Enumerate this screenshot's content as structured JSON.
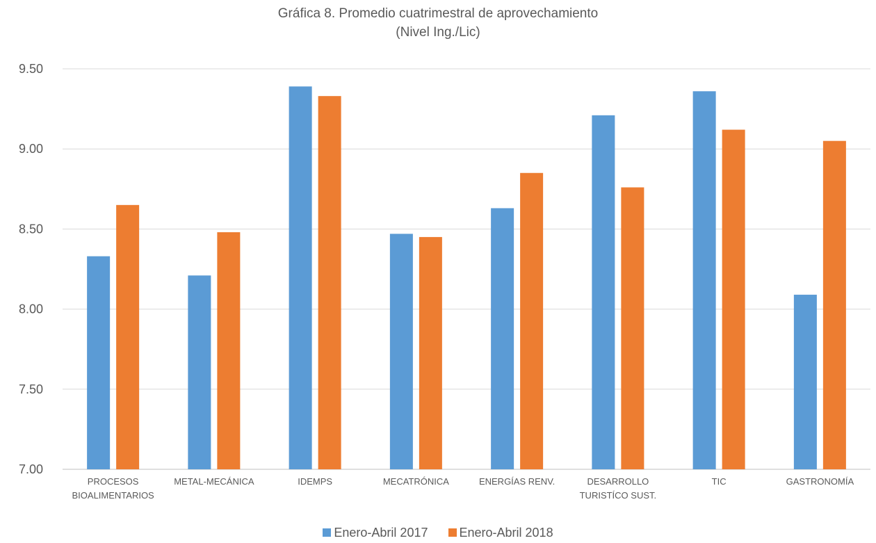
{
  "chart_data": {
    "type": "bar",
    "title": "Gráfica 8. Promedio cuatrimestral de aprovechamiento",
    "subtitle": "(Nivel Ing./Lic)",
    "categories": [
      [
        "PROCESOS",
        "BIOALIMENTARIOS"
      ],
      [
        "METAL-MECÁNICA"
      ],
      [
        "IDEMPS"
      ],
      [
        "MECATRÓNICA"
      ],
      [
        "ENERGÍAS RENV."
      ],
      [
        "DESARROLLO",
        "TURISTÍCO SUST."
      ],
      [
        "TIC"
      ],
      [
        "GASTRONOMÍA"
      ]
    ],
    "series": [
      {
        "name": "Enero-Abril  2017",
        "color": "#5B9BD5",
        "values": [
          8.33,
          8.21,
          9.39,
          8.47,
          8.63,
          9.21,
          9.36,
          8.09
        ]
      },
      {
        "name": "Enero-Abril  2018",
        "color": "#ED7D31",
        "values": [
          8.65,
          8.48,
          9.33,
          8.45,
          8.85,
          8.76,
          9.12,
          9.05
        ]
      }
    ],
    "yticks": [
      "7.00",
      "7.50",
      "8.00",
      "8.50",
      "9.00",
      "9.50"
    ],
    "ylim": [
      7.0,
      9.5
    ],
    "grid": true,
    "legend_position": "bottom"
  }
}
